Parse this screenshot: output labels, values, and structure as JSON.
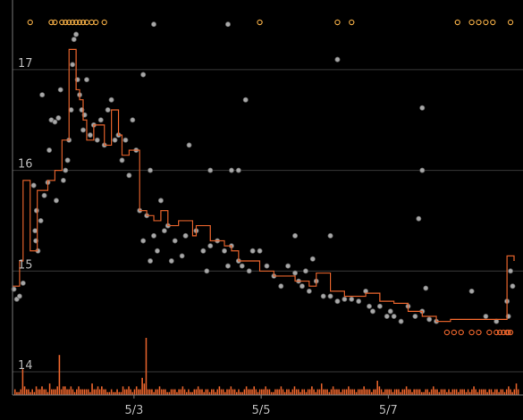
{
  "chart_data": {
    "type": "line",
    "title": "",
    "xlabel": "",
    "ylabel": "",
    "x_ticks": [
      "5/3",
      "5/5",
      "5/7"
    ],
    "y_ticks": [
      "14",
      "15",
      "16",
      "17"
    ],
    "x_range_days": [
      0.0,
      7.1
    ],
    "ylim": [
      13.78,
      17.55
    ],
    "grid": true,
    "colors": {
      "background": "#000000",
      "grid": "#3a3a3a",
      "axis": "#7a7a7a",
      "step_line": "#e0602a",
      "points": "#a8a8a8",
      "point_stroke": "#5e5e5e",
      "volume": "#e0602a",
      "top_markers": "#e0a040",
      "low_markers": "#e0602a"
    },
    "series": [
      {
        "kind": "step",
        "x": [
          0.0,
          0.1,
          0.15,
          0.25,
          0.35,
          0.5,
          0.6,
          0.7,
          0.8,
          0.9,
          0.95,
          1.0,
          1.05,
          1.15,
          1.3,
          1.4,
          1.5,
          1.55,
          1.65,
          1.8,
          1.9,
          2.0,
          2.1,
          2.2,
          2.35,
          2.55,
          2.6,
          2.8,
          3.0,
          3.1,
          3.2,
          3.5,
          3.7,
          4.0,
          4.2,
          4.3,
          4.5,
          4.7,
          5.0,
          5.2,
          5.4,
          5.6,
          5.8,
          6.0,
          6.2,
          6.4,
          6.6,
          6.8,
          7.0,
          7.1
        ],
        "values": [
          14.85,
          15.1,
          15.9,
          15.2,
          15.8,
          15.9,
          16.0,
          16.3,
          17.2,
          16.8,
          16.7,
          16.5,
          16.3,
          16.45,
          16.25,
          16.6,
          16.35,
          16.15,
          16.2,
          15.6,
          15.55,
          15.5,
          15.6,
          15.45,
          15.5,
          15.35,
          15.45,
          15.3,
          15.25,
          15.2,
          15.1,
          15.0,
          14.95,
          14.9,
          14.85,
          14.98,
          14.8,
          14.75,
          14.78,
          14.7,
          14.68,
          14.6,
          14.55,
          14.5,
          14.52,
          14.52,
          14.52,
          14.52,
          15.15,
          15.1
        ]
      }
    ],
    "scatter_points": [
      [
        0.02,
        14.82
      ],
      [
        0.06,
        14.72
      ],
      [
        0.1,
        14.75
      ],
      [
        0.15,
        14.88
      ],
      [
        0.3,
        15.85
      ],
      [
        0.32,
        15.4
      ],
      [
        0.33,
        15.3
      ],
      [
        0.34,
        15.6
      ],
      [
        0.36,
        15.2
      ],
      [
        0.4,
        15.5
      ],
      [
        0.45,
        15.75
      ],
      [
        0.42,
        16.75
      ],
      [
        0.5,
        15.88
      ],
      [
        0.52,
        16.2
      ],
      [
        0.55,
        16.5
      ],
      [
        0.6,
        16.48
      ],
      [
        0.62,
        15.7
      ],
      [
        0.65,
        16.52
      ],
      [
        0.68,
        16.8
      ],
      [
        0.72,
        15.9
      ],
      [
        0.75,
        16.0
      ],
      [
        0.78,
        16.1
      ],
      [
        0.8,
        16.3
      ],
      [
        0.83,
        16.6
      ],
      [
        0.85,
        17.05
      ],
      [
        0.87,
        17.3
      ],
      [
        0.9,
        17.35
      ],
      [
        0.92,
        16.9
      ],
      [
        0.95,
        16.75
      ],
      [
        0.98,
        16.6
      ],
      [
        1.0,
        16.4
      ],
      [
        1.02,
        16.55
      ],
      [
        1.05,
        16.9
      ],
      [
        1.1,
        16.35
      ],
      [
        1.15,
        16.45
      ],
      [
        1.2,
        16.3
      ],
      [
        1.25,
        16.5
      ],
      [
        1.3,
        16.25
      ],
      [
        1.35,
        16.6
      ],
      [
        1.4,
        16.7
      ],
      [
        1.45,
        16.3
      ],
      [
        1.5,
        16.35
      ],
      [
        1.55,
        16.1
      ],
      [
        1.6,
        16.3
      ],
      [
        1.65,
        15.95
      ],
      [
        1.7,
        16.5
      ],
      [
        1.75,
        16.2
      ],
      [
        1.8,
        15.6
      ],
      [
        1.85,
        15.3
      ],
      [
        1.9,
        15.55
      ],
      [
        1.95,
        15.1
      ],
      [
        2.0,
        15.35
      ],
      [
        2.05,
        15.2
      ],
      [
        2.1,
        15.7
      ],
      [
        2.15,
        15.4
      ],
      [
        2.2,
        15.45
      ],
      [
        2.25,
        15.1
      ],
      [
        2.3,
        15.3
      ],
      [
        2.4,
        15.15
      ],
      [
        2.45,
        15.35
      ],
      [
        2.6,
        15.4
      ],
      [
        2.7,
        15.2
      ],
      [
        2.8,
        15.25
      ],
      [
        2.9,
        15.3
      ],
      [
        3.0,
        15.2
      ],
      [
        3.05,
        15.05
      ],
      [
        3.1,
        15.25
      ],
      [
        3.2,
        15.1
      ],
      [
        3.35,
        15.0
      ],
      [
        3.5,
        15.2
      ],
      [
        3.6,
        15.05
      ],
      [
        3.7,
        14.95
      ],
      [
        3.8,
        14.85
      ],
      [
        3.9,
        15.05
      ],
      [
        4.0,
        14.98
      ],
      [
        4.05,
        14.9
      ],
      [
        4.1,
        14.85
      ],
      [
        4.2,
        14.8
      ],
      [
        4.3,
        14.9
      ],
      [
        4.4,
        14.75
      ],
      [
        4.5,
        14.75
      ],
      [
        4.6,
        14.7
      ],
      [
        4.7,
        14.72
      ],
      [
        4.8,
        14.72
      ],
      [
        4.9,
        14.7
      ],
      [
        5.0,
        14.8
      ],
      [
        5.05,
        14.65
      ],
      [
        5.1,
        14.6
      ],
      [
        5.2,
        14.65
      ],
      [
        5.3,
        14.55
      ],
      [
        5.35,
        14.6
      ],
      [
        5.4,
        14.55
      ],
      [
        5.5,
        14.5
      ],
      [
        5.6,
        14.65
      ],
      [
        5.7,
        14.55
      ],
      [
        5.8,
        14.6
      ],
      [
        5.9,
        14.52
      ],
      [
        6.0,
        14.5
      ],
      [
        6.5,
        14.8
      ],
      [
        6.7,
        14.55
      ],
      [
        6.85,
        14.5
      ],
      [
        7.0,
        14.7
      ],
      [
        7.02,
        14.55
      ],
      [
        7.05,
        15.0
      ],
      [
        7.08,
        14.85
      ],
      [
        2.5,
        16.25
      ],
      [
        2.75,
        15.0
      ],
      [
        3.25,
        15.05
      ],
      [
        3.4,
        15.2
      ],
      [
        4.15,
        15.0
      ],
      [
        4.25,
        15.12
      ],
      [
        5.75,
        15.52
      ],
      [
        5.85,
        14.83
      ],
      [
        5.8,
        16.62
      ],
      [
        5.8,
        16.0
      ],
      [
        2.8,
        16.0
      ],
      [
        3.1,
        16.0
      ],
      [
        3.2,
        16.0
      ],
      [
        3.3,
        16.7
      ],
      [
        3.05,
        17.45
      ],
      [
        2.0,
        17.45
      ],
      [
        1.85,
        16.95
      ],
      [
        1.95,
        16.0
      ],
      [
        4.6,
        17.1
      ],
      [
        4.5,
        15.35
      ],
      [
        4.0,
        15.35
      ]
    ],
    "volume": [
      2,
      1,
      1,
      2,
      9,
      3,
      2,
      2,
      1,
      2,
      1,
      3,
      2,
      2,
      3,
      2,
      2,
      1,
      4,
      2,
      2,
      2,
      3,
      14,
      2,
      3,
      3,
      2,
      2,
      3,
      2,
      1,
      2,
      3,
      2,
      2,
      2,
      2,
      2,
      1,
      4,
      2,
      2,
      3,
      2,
      3,
      2,
      2,
      1,
      1,
      2,
      1,
      1,
      2,
      1,
      1,
      3,
      2,
      2,
      3,
      2,
      1,
      2,
      3,
      2,
      2,
      6,
      4,
      20,
      2,
      2,
      2,
      1,
      2,
      2,
      3,
      2,
      2,
      2,
      1,
      1,
      2,
      2,
      2,
      1,
      2,
      2,
      3,
      2,
      1,
      2,
      1,
      1,
      2,
      2,
      3,
      2,
      2,
      1,
      2,
      2,
      1,
      2,
      2,
      1,
      2,
      3,
      2,
      2,
      1,
      2,
      2,
      3,
      2,
      2,
      1,
      2,
      1,
      1,
      2,
      3,
      2,
      2,
      2,
      3,
      2,
      1,
      2,
      2,
      2,
      3,
      2,
      2,
      1,
      1,
      2,
      2,
      2,
      3,
      2,
      1,
      2,
      2,
      1,
      2,
      3,
      2,
      2,
      1,
      2,
      2,
      1,
      2,
      2,
      3,
      2,
      1,
      2,
      2,
      4,
      2,
      2,
      2,
      1,
      2,
      3,
      2,
      2,
      2,
      1,
      2,
      2,
      2,
      3,
      2,
      2,
      2,
      1,
      2,
      2,
      2,
      3,
      2,
      2,
      2,
      1,
      2,
      2,
      5,
      3,
      2,
      1,
      2,
      2,
      2,
      2,
      1,
      2,
      2,
      2,
      1,
      2,
      2,
      3,
      2,
      2,
      1,
      2,
      2,
      2,
      2,
      1,
      1,
      2,
      2,
      1,
      2,
      3,
      2,
      2,
      1,
      2,
      2,
      2,
      1,
      2,
      1,
      2,
      2,
      2,
      1,
      2,
      2,
      2,
      1,
      2,
      1,
      2,
      3,
      2,
      1,
      2,
      2,
      2,
      2,
      1,
      2,
      2,
      1,
      2,
      2,
      1,
      2,
      2,
      1,
      2,
      3,
      2,
      1,
      2,
      4,
      2
    ],
    "top_markers": [
      0.25,
      0.55,
      0.6,
      0.7,
      0.75,
      0.8,
      0.85,
      0.9,
      0.95,
      1.0,
      1.05,
      1.12,
      1.18,
      1.3,
      3.5,
      4.6,
      4.8,
      6.3,
      6.5,
      6.6,
      6.7,
      6.8,
      7.05
    ],
    "low_markers": [
      6.15,
      6.25,
      6.35,
      6.5,
      6.6,
      6.75,
      6.85,
      6.9,
      6.95,
      7.0,
      7.02,
      7.05
    ]
  }
}
